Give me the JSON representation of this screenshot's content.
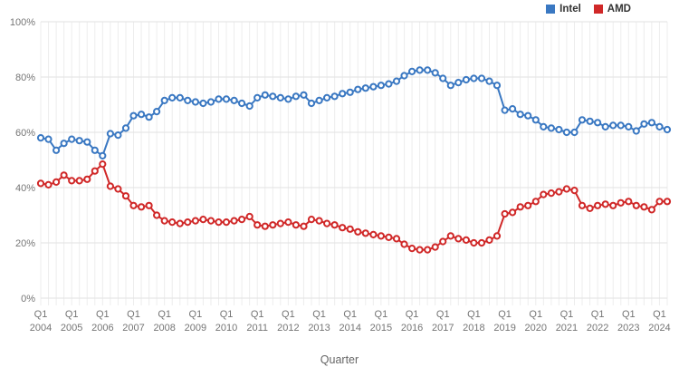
{
  "legend": {
    "items": [
      {
        "id": "intel",
        "label": "Intel",
        "color": "#3a78c2"
      },
      {
        "id": "amd",
        "label": "AMD",
        "color": "#d02828"
      }
    ]
  },
  "axes": {
    "x_title": "Quarter",
    "x_tick_quarter_label": "Q1",
    "x_tick_years": [
      "2004",
      "2005",
      "2006",
      "2007",
      "2008",
      "2009",
      "2010",
      "2011",
      "2012",
      "2013",
      "2014",
      "2015",
      "2016",
      "2017",
      "2018",
      "2019",
      "2020",
      "2021",
      "2022",
      "2023",
      "2024"
    ],
    "y_tick_labels": [
      "0%",
      "20%",
      "40%",
      "60%",
      "80%",
      "100%"
    ]
  },
  "chart_data": {
    "type": "line",
    "title": "",
    "xlabel": "Quarter",
    "ylabel": "",
    "ylim": [
      0,
      100
    ],
    "grid": true,
    "legend_position": "top-right",
    "x_start": "2004 Q1",
    "x_end": "2024 Q2",
    "quarters_per_year": 4,
    "marker": "open-circle",
    "series": [
      {
        "name": "Intel",
        "color": "#3a78c2",
        "values": [
          58,
          57.5,
          53.5,
          56,
          57.5,
          57,
          56.5,
          53.5,
          51.5,
          59.5,
          59,
          61.5,
          66,
          66.5,
          65.5,
          67.5,
          71.5,
          72.5,
          72.5,
          71.5,
          71,
          70.5,
          71,
          72,
          72,
          71.5,
          70.5,
          69.5,
          72.5,
          73.5,
          73,
          72.5,
          72,
          73,
          73.5,
          70.5,
          71.5,
          72.5,
          73,
          74,
          74.5,
          75.5,
          76,
          76.5,
          77,
          77.5,
          78.5,
          80.5,
          82,
          82.5,
          82.5,
          81.5,
          79.5,
          77,
          78,
          79,
          79.5,
          79.5,
          78.5,
          77,
          68,
          68.5,
          66.5,
          66,
          64.5,
          62,
          61.5,
          61,
          60,
          60,
          64.5,
          64,
          63.5,
          62,
          62.5,
          62.5,
          62,
          60.5,
          63,
          63.5,
          62,
          61
        ]
      },
      {
        "name": "AMD",
        "color": "#d02828",
        "values": [
          41.5,
          41,
          42,
          44.5,
          42.5,
          42.5,
          43,
          46,
          48.5,
          40.5,
          39.5,
          37,
          33.5,
          33,
          33.5,
          30,
          28,
          27.5,
          27,
          27.5,
          28,
          28.5,
          28,
          27.5,
          27.5,
          28,
          28.5,
          29.5,
          26.5,
          26,
          26.5,
          27,
          27.5,
          26.5,
          26,
          28.5,
          28,
          27,
          26.5,
          25.5,
          25,
          24,
          23.5,
          23,
          22.5,
          22,
          21.5,
          19.5,
          18,
          17.5,
          17.5,
          18.5,
          20.5,
          22.5,
          21.5,
          21,
          20,
          20,
          21,
          22.5,
          30.5,
          31,
          33,
          33.5,
          35,
          37.5,
          38,
          38.5,
          39.5,
          39,
          33.5,
          32.5,
          33.5,
          34,
          33.5,
          34.5,
          35,
          33.5,
          33,
          32,
          35,
          35
        ]
      }
    ]
  },
  "colors": {
    "grid_horizontal": "#e2e2e2",
    "grid_vertical": "#ededed",
    "tick_text": "#757575",
    "marker_fill": "#ffffff"
  }
}
